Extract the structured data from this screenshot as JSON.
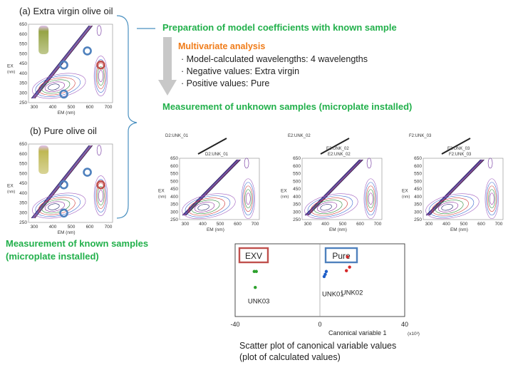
{
  "left_panels": [
    {
      "caption": "(a) Extra virgin olive oil",
      "ylabel": "EX",
      "yunit": "(nm)",
      "xlabel": "EM (nm)",
      "yticks": [
        "650",
        "600",
        "550",
        "500",
        "450",
        "400",
        "350",
        "300",
        "250"
      ],
      "xticks": [
        "300",
        "400",
        "500",
        "600",
        "700"
      ]
    },
    {
      "caption": "(b) Pure olive oil",
      "ylabel": "EX",
      "yunit": "(nm)",
      "xlabel": "EM (nm)",
      "yticks": [
        "650",
        "600",
        "550",
        "500",
        "450",
        "400",
        "350",
        "300",
        "250"
      ],
      "xticks": [
        "300",
        "400",
        "500",
        "600",
        "700"
      ]
    }
  ],
  "known_caption_line1": "Measurement of known samples",
  "known_caption_line2": "(microplate installed)",
  "prep_title": "Preparation of model coefficients with known sample",
  "multivariate": {
    "title": "Multivariate analysis",
    "items": [
      "· Model-calculated wavelengths: 4 wavelengths",
      "· Negative values:  Extra virgin",
      "· Positive values:    Pure"
    ]
  },
  "unknown_title": "Measurement of  unknown samples (microplate installed)",
  "unknown_panels": [
    {
      "top_label": "D2:UNK_01",
      "mid_label": "D2:UNK_01",
      "inner_label": "",
      "ylabel": "EX",
      "yunit": "(nm)",
      "xlabel": "EM (nm)",
      "yticks": [
        "650",
        "600",
        "550",
        "500",
        "450",
        "400",
        "350",
        "300",
        "250"
      ],
      "xticks": [
        "300",
        "400",
        "500",
        "600",
        "700"
      ]
    },
    {
      "top_label": "E2:UNK_02",
      "mid_label": "E2:UNK_02",
      "inner_label": "E2:UNK_02",
      "ylabel": "EX",
      "yunit": "(nm)",
      "xlabel": "EM (nm)",
      "yticks": [
        "650",
        "600",
        "550",
        "500",
        "450",
        "400",
        "350",
        "300",
        "250"
      ],
      "xticks": [
        "300",
        "400",
        "500",
        "600",
        "700"
      ]
    },
    {
      "top_label": "F2:UNK_03",
      "mid_label": "F2:UNK_03",
      "inner_label": "F2:UNK_03",
      "ylabel": "EX",
      "yunit": "(nm)",
      "xlabel": "EM (nm)",
      "yticks": [
        "650",
        "600",
        "550",
        "500",
        "450",
        "400",
        "350",
        "300",
        "250"
      ],
      "xticks": [
        "300",
        "400",
        "500",
        "600",
        "700"
      ]
    }
  ],
  "scatter": {
    "chart_data": {
      "type": "scatter",
      "xlabel": "Canonical variable 1",
      "x_multiplier": "(x10³)",
      "xticks": [
        "-40",
        "0",
        "40"
      ],
      "xlim": [
        -40,
        40
      ],
      "groups": [
        {
          "label": "EXV",
          "color": "#c0504d"
        },
        {
          "label": "Pure",
          "color": "#4f81bd"
        }
      ],
      "series": [
        {
          "name": "UNK03",
          "color": "#2ca02c",
          "points": [
            [
              -31,
              0.62
            ],
            [
              -30,
              0.62
            ],
            [
              -30.5,
              0.4
            ]
          ]
        },
        {
          "name": "UNK01",
          "color": "#1f5fc8",
          "points": [
            [
              2.5,
              0.58
            ],
            [
              3,
              0.62
            ],
            [
              2,
              0.55
            ]
          ]
        },
        {
          "name": "UNK02",
          "color": "#d62728",
          "points": [
            [
              13,
              0.82
            ],
            [
              14,
              0.68
            ],
            [
              12.5,
              0.63
            ]
          ]
        }
      ]
    },
    "caption_line1": "Scatter plot of canonical variable values",
    "caption_line2": "(plot of calculated values)"
  }
}
